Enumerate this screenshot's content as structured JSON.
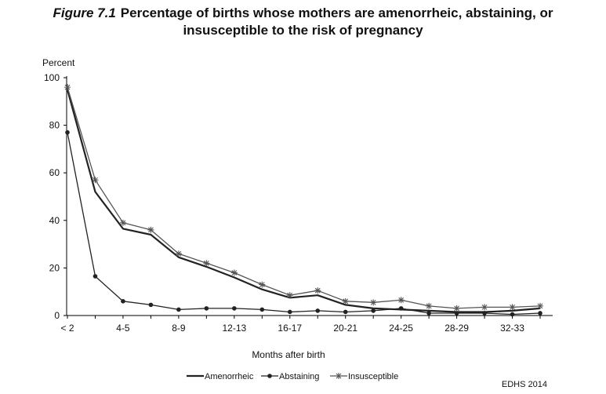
{
  "figure": {
    "number": "Figure 7.1",
    "title_line1": "Percentage of births whose mothers are amenorrheic, abstaining, or",
    "title_line2": "insusceptible to the risk of pregnancy"
  },
  "source": "EDHS 2014",
  "chart_data": {
    "type": "line",
    "ylabel": "Percent",
    "xlabel": "Months after birth",
    "ylim": [
      0,
      100
    ],
    "yticks": [
      0,
      20,
      40,
      60,
      80,
      100
    ],
    "x_positions": 18,
    "xticks": [
      {
        "index": 0,
        "label": "< 2"
      },
      {
        "index": 2,
        "label": "4-5"
      },
      {
        "index": 4,
        "label": "8-9"
      },
      {
        "index": 6,
        "label": "12-13"
      },
      {
        "index": 8,
        "label": "16-17"
      },
      {
        "index": 10,
        "label": "20-21"
      },
      {
        "index": 12,
        "label": "24-25"
      },
      {
        "index": 14,
        "label": "28-29"
      },
      {
        "index": 16,
        "label": "32-33"
      }
    ],
    "grid": false,
    "legend_position": "bottom",
    "series": [
      {
        "name": "Amenorrheic",
        "marker": "none",
        "color": "#222222",
        "values": [
          95,
          52,
          36.5,
          34,
          24.5,
          20.5,
          16,
          11,
          7.5,
          8.5,
          4.5,
          3,
          2.5,
          2,
          1.5,
          1.5,
          2,
          3
        ]
      },
      {
        "name": "Abstaining",
        "marker": "dot",
        "color": "#222222",
        "values": [
          77,
          16.5,
          6,
          4.5,
          2.5,
          3,
          3,
          2.5,
          1.5,
          2,
          1.5,
          2,
          3,
          1,
          1,
          1,
          0.5,
          1
        ]
      },
      {
        "name": "Insusceptible",
        "marker": "star",
        "color": "#555555",
        "values": [
          96,
          57,
          39,
          36,
          26,
          22,
          18,
          13,
          8.5,
          10.5,
          6,
          5.5,
          6.5,
          4,
          3,
          3.5,
          3.5,
          4
        ]
      }
    ]
  }
}
